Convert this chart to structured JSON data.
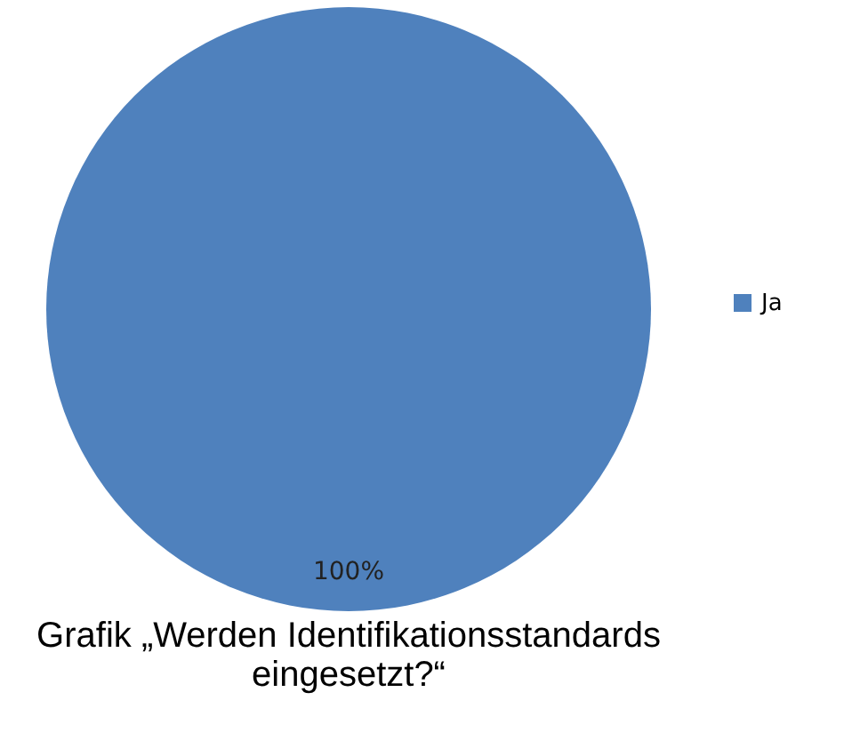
{
  "chart_data": {
    "type": "pie",
    "title": "Grafik „Werden Identifikationsstandards eingesetzt?“",
    "categories": [
      "Ja"
    ],
    "values": [
      100
    ],
    "colors": [
      "#4f81bd"
    ],
    "value_labels": [
      "100%"
    ],
    "legend": "right"
  }
}
